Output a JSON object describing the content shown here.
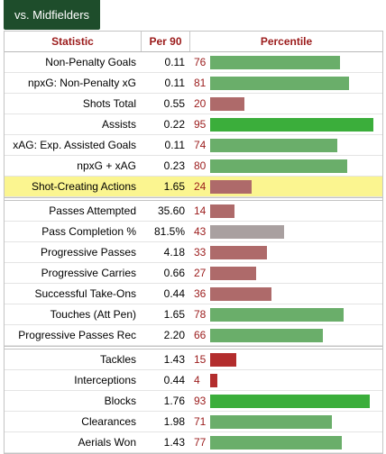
{
  "tab": {
    "label": "vs. Midfielders"
  },
  "headers": {
    "statistic": "Statistic",
    "per90": "Per 90",
    "percentile": "Percentile"
  },
  "colors": {
    "elite": "#3bae3b",
    "high": "#6aae6a",
    "mid": "#a9a0a0",
    "low": "#ae6a6a",
    "lowest": "#b32d2d",
    "highlight": "#fbf590"
  },
  "groups": [
    {
      "rows": [
        {
          "name": "Non-Penalty Goals",
          "value": "0.11",
          "percentile": "76",
          "pct": 76,
          "tier": "high",
          "highlight": false
        },
        {
          "name": "npxG: Non-Penalty xG",
          "value": "0.11",
          "percentile": "81",
          "pct": 81,
          "tier": "high",
          "highlight": false
        },
        {
          "name": "Shots Total",
          "value": "0.55",
          "percentile": "20",
          "pct": 20,
          "tier": "low",
          "highlight": false
        },
        {
          "name": "Assists",
          "value": "0.22",
          "percentile": "95",
          "pct": 95,
          "tier": "elite",
          "highlight": false
        },
        {
          "name": "xAG: Exp. Assisted Goals",
          "value": "0.11",
          "percentile": "74",
          "pct": 74,
          "tier": "high",
          "highlight": false
        },
        {
          "name": "npxG + xAG",
          "value": "0.23",
          "percentile": "80",
          "pct": 80,
          "tier": "high",
          "highlight": false
        },
        {
          "name": "Shot-Creating Actions",
          "value": "1.65",
          "percentile": "24",
          "pct": 24,
          "tier": "low",
          "highlight": true
        }
      ]
    },
    {
      "rows": [
        {
          "name": "Passes Attempted",
          "value": "35.60",
          "percentile": "14",
          "pct": 14,
          "tier": "low",
          "highlight": false
        },
        {
          "name": "Pass Completion %",
          "value": "81.5%",
          "percentile": "43",
          "pct": 43,
          "tier": "mid",
          "highlight": false
        },
        {
          "name": "Progressive Passes",
          "value": "4.18",
          "percentile": "33",
          "pct": 33,
          "tier": "low",
          "highlight": false
        },
        {
          "name": "Progressive Carries",
          "value": "0.66",
          "percentile": "27",
          "pct": 27,
          "tier": "low",
          "highlight": false
        },
        {
          "name": "Successful Take-Ons",
          "value": "0.44",
          "percentile": "36",
          "pct": 36,
          "tier": "low",
          "highlight": false
        },
        {
          "name": "Touches (Att Pen)",
          "value": "1.65",
          "percentile": "78",
          "pct": 78,
          "tier": "high",
          "highlight": false
        },
        {
          "name": "Progressive Passes Rec",
          "value": "2.20",
          "percentile": "66",
          "pct": 66,
          "tier": "high",
          "highlight": false
        }
      ]
    },
    {
      "rows": [
        {
          "name": "Tackles",
          "value": "1.43",
          "percentile": "15",
          "pct": 15,
          "tier": "lowest",
          "highlight": false
        },
        {
          "name": "Interceptions",
          "value": "0.44",
          "percentile": "4",
          "pct": 4,
          "tier": "lowest",
          "highlight": false
        },
        {
          "name": "Blocks",
          "value": "1.76",
          "percentile": "93",
          "pct": 93,
          "tier": "elite",
          "highlight": false
        },
        {
          "name": "Clearances",
          "value": "1.98",
          "percentile": "71",
          "pct": 71,
          "tier": "high",
          "highlight": false
        },
        {
          "name": "Aerials Won",
          "value": "1.43",
          "percentile": "77",
          "pct": 77,
          "tier": "high",
          "highlight": false
        }
      ]
    }
  ]
}
